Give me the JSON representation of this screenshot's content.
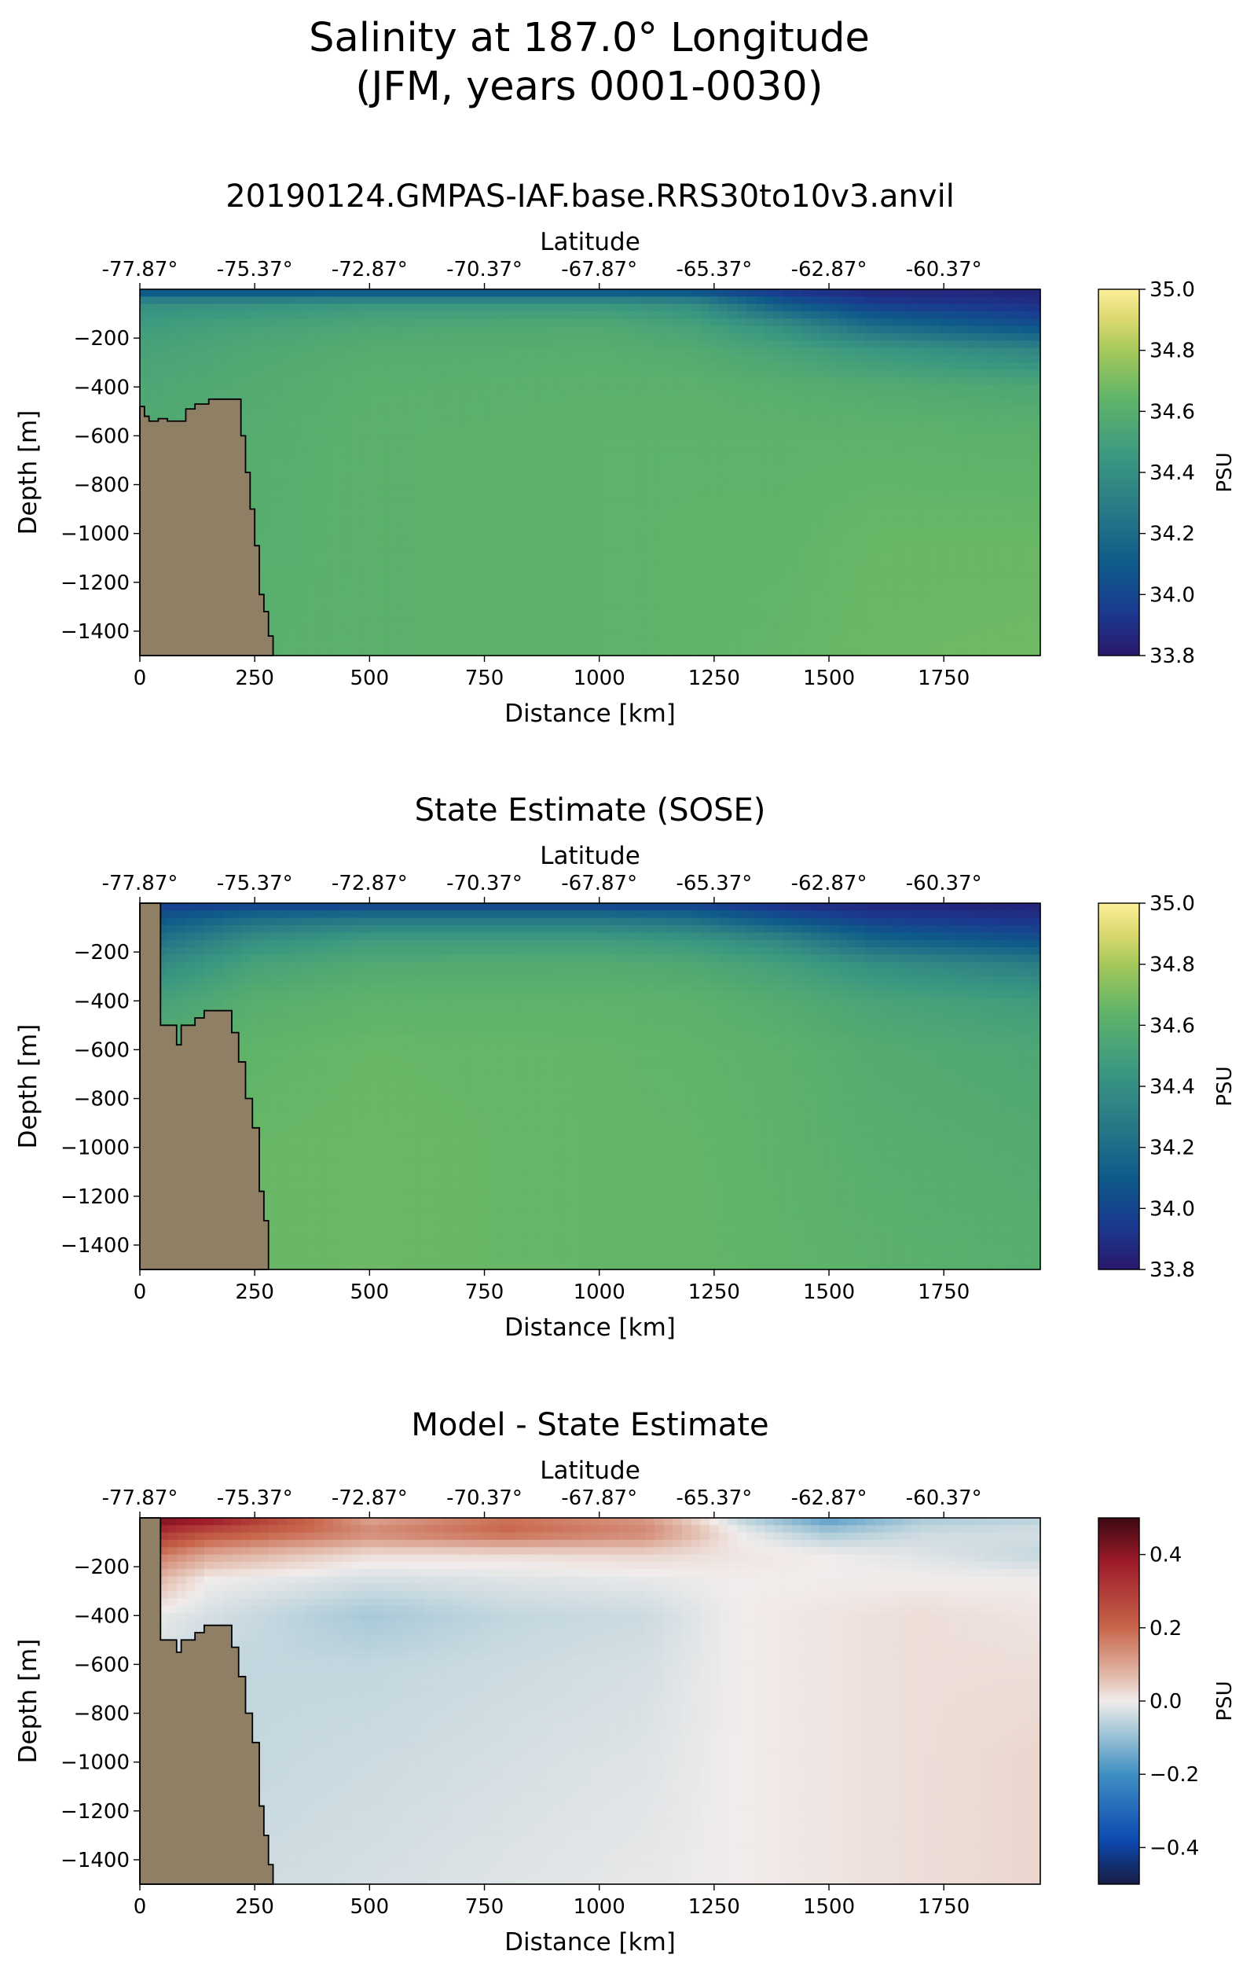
{
  "suptitle": {
    "line1": "Salinity at 187.0° Longitude",
    "line2": "(JFM, years 0001-0030)"
  },
  "chart_data": [
    {
      "type": "heatmap",
      "title": "20190124.GMPAS-IAF.base.RRS30to10v3.anvil",
      "xlabel": "Distance [km]",
      "ylabel": "Depth [m]",
      "top_xlabel": "Latitude",
      "xlim": [
        0,
        1960
      ],
      "ylim": [
        -1500,
        0
      ],
      "x_ticks": [
        "0",
        "250",
        "500",
        "750",
        "1000",
        "1250",
        "1500",
        "1750"
      ],
      "y_ticks": [
        "−200",
        "−400",
        "−600",
        "−800",
        "−1000",
        "−1200",
        "−1400"
      ],
      "top_x_ticks": [
        "-77.87°",
        "-75.37°",
        "-72.87°",
        "-70.37°",
        "-67.87°",
        "-65.37°",
        "-62.87°",
        "-60.37°"
      ],
      "colorbar": {
        "label": "PSU",
        "range": [
          33.8,
          35.0
        ],
        "ticks": [
          "33.8",
          "34.0",
          "34.2",
          "34.4",
          "34.6",
          "34.8",
          "35.0"
        ],
        "colormap": "haline"
      },
      "land_color": "#8f7f65",
      "land_depth_profile": {
        "distance_km": [
          0,
          10,
          20,
          40,
          60,
          80,
          100,
          120,
          150,
          180,
          205,
          220,
          230,
          240,
          250,
          260,
          270,
          280,
          290
        ],
        "depth_m": [
          -480,
          -520,
          -540,
          -530,
          -540,
          -540,
          -490,
          -470,
          -450,
          -450,
          -450,
          -600,
          -750,
          -900,
          -1050,
          -1250,
          -1320,
          -1420,
          -1500
        ]
      },
      "salinity_field": {
        "depth_m": [
          0,
          -60,
          -150,
          -250,
          -400,
          -600,
          -1000,
          -1500
        ],
        "distance_km": [
          0,
          250,
          500,
          1000,
          1200,
          1400,
          1600,
          1960
        ],
        "values": [
          [
            34.0,
            34.0,
            34.0,
            34.0,
            34.0,
            33.9,
            33.85,
            33.85
          ],
          [
            34.4,
            34.42,
            34.45,
            34.45,
            34.4,
            34.1,
            33.95,
            33.9
          ],
          [
            34.48,
            34.52,
            34.55,
            34.57,
            34.52,
            34.4,
            34.2,
            34.05
          ],
          [
            34.52,
            34.56,
            34.59,
            34.6,
            34.58,
            34.52,
            34.45,
            34.35
          ],
          [
            34.55,
            34.58,
            34.61,
            34.62,
            34.62,
            34.6,
            34.58,
            34.55
          ],
          [
            34.57,
            34.59,
            34.62,
            34.63,
            34.63,
            34.63,
            34.63,
            34.62
          ],
          [
            34.59,
            34.6,
            34.62,
            34.63,
            34.64,
            34.64,
            34.66,
            34.66
          ],
          [
            34.6,
            34.61,
            34.62,
            34.63,
            34.64,
            34.65,
            34.67,
            34.68
          ]
        ]
      }
    },
    {
      "type": "heatmap",
      "title": "State Estimate (SOSE)",
      "xlabel": "Distance [km]",
      "ylabel": "Depth [m]",
      "top_xlabel": "Latitude",
      "xlim": [
        0,
        1960
      ],
      "ylim": [
        -1500,
        0
      ],
      "x_ticks": [
        "0",
        "250",
        "500",
        "750",
        "1000",
        "1250",
        "1500",
        "1750"
      ],
      "y_ticks": [
        "−200",
        "−400",
        "−600",
        "−800",
        "−1000",
        "−1200",
        "−1400"
      ],
      "top_x_ticks": [
        "-77.87°",
        "-75.37°",
        "-72.87°",
        "-70.37°",
        "-67.87°",
        "-65.37°",
        "-62.87°",
        "-60.37°"
      ],
      "colorbar": {
        "label": "PSU",
        "range": [
          33.8,
          35.0
        ],
        "ticks": [
          "33.8",
          "34.0",
          "34.2",
          "34.4",
          "34.6",
          "34.8",
          "35.0"
        ],
        "colormap": "haline"
      },
      "land_color": "#8f7f65",
      "land_depth_profile": {
        "distance_km": [
          0,
          35,
          45,
          70,
          80,
          90,
          100,
          120,
          140,
          160,
          180,
          200,
          215,
          230,
          245,
          260,
          270,
          280
        ],
        "depth_m": [
          0,
          0,
          -500,
          -500,
          -580,
          -500,
          -500,
          -470,
          -440,
          -440,
          -440,
          -530,
          -650,
          -800,
          -920,
          -1180,
          -1300,
          -1500
        ]
      },
      "salinity_field": {
        "depth_m": [
          0,
          -60,
          -150,
          -250,
          -400,
          -600,
          -1000,
          -1500
        ],
        "distance_km": [
          0,
          250,
          500,
          1000,
          1200,
          1400,
          1600,
          1960
        ],
        "values": [
          [
            33.95,
            33.95,
            33.95,
            33.95,
            33.95,
            33.88,
            33.85,
            33.85
          ],
          [
            34.05,
            34.2,
            34.25,
            34.25,
            34.2,
            34.05,
            33.95,
            33.9
          ],
          [
            34.2,
            34.4,
            34.48,
            34.48,
            34.45,
            34.35,
            34.15,
            34.05
          ],
          [
            34.35,
            34.52,
            34.57,
            34.58,
            34.56,
            34.5,
            34.4,
            34.3
          ],
          [
            34.5,
            34.6,
            34.63,
            34.63,
            34.62,
            34.58,
            34.53,
            34.48
          ],
          [
            34.58,
            34.64,
            34.66,
            34.65,
            34.64,
            34.62,
            34.58,
            34.55
          ],
          [
            34.62,
            34.66,
            34.67,
            34.65,
            34.65,
            34.63,
            34.6,
            34.58
          ],
          [
            34.63,
            34.66,
            34.67,
            34.65,
            34.65,
            34.64,
            34.62,
            34.6
          ]
        ]
      }
    },
    {
      "type": "heatmap",
      "title": "Model - State Estimate",
      "xlabel": "Distance [km]",
      "ylabel": "Depth [m]",
      "top_xlabel": "Latitude",
      "xlim": [
        0,
        1960
      ],
      "ylim": [
        -1500,
        0
      ],
      "x_ticks": [
        "0",
        "250",
        "500",
        "750",
        "1000",
        "1250",
        "1500",
        "1750"
      ],
      "y_ticks": [
        "−200",
        "−400",
        "−600",
        "−800",
        "−1000",
        "−1200",
        "−1400"
      ],
      "top_x_ticks": [
        "-77.87°",
        "-75.37°",
        "-72.87°",
        "-70.37°",
        "-67.87°",
        "-65.37°",
        "-62.87°",
        "-60.37°"
      ],
      "colorbar": {
        "label": "PSU",
        "range": [
          -0.5,
          0.5
        ],
        "ticks": [
          "−0.4",
          "−0.2",
          "0.0",
          "0.2",
          "0.4"
        ],
        "colormap": "balance"
      },
      "land_color": "#8f7f65",
      "land_depth_profile": {
        "distance_km": [
          0,
          35,
          45,
          70,
          80,
          90,
          100,
          120,
          140,
          160,
          180,
          200,
          215,
          230,
          245,
          260,
          270,
          280,
          290
        ],
        "depth_m": [
          0,
          0,
          -500,
          -500,
          -550,
          -500,
          -500,
          -470,
          -440,
          -440,
          -440,
          -530,
          -650,
          -800,
          -920,
          -1180,
          -1300,
          -1420,
          -1500
        ]
      },
      "difference_field": {
        "depth_m": [
          0,
          -60,
          -150,
          -250,
          -400,
          -600,
          -1000,
          -1500
        ],
        "distance_km": [
          0,
          150,
          500,
          800,
          1100,
          1300,
          1500,
          1700,
          1960
        ],
        "values": [
          [
            0.45,
            0.4,
            0.1,
            0.18,
            0.12,
            -0.05,
            -0.18,
            -0.08,
            -0.06
          ],
          [
            0.35,
            0.25,
            0.15,
            0.2,
            0.15,
            0.0,
            -0.08,
            -0.04,
            -0.03
          ],
          [
            0.2,
            0.1,
            0.02,
            0.02,
            0.03,
            0.01,
            0.0,
            -0.02,
            -0.05
          ],
          [
            0.1,
            0.0,
            -0.03,
            -0.02,
            -0.01,
            0.0,
            0.0,
            0.0,
            0.0
          ],
          [
            0.0,
            -0.03,
            -0.08,
            -0.05,
            -0.04,
            0.0,
            0.01,
            0.02,
            0.01
          ],
          [
            -0.03,
            -0.05,
            -0.05,
            -0.04,
            -0.03,
            0.0,
            0.01,
            0.02,
            0.02
          ],
          [
            -0.04,
            -0.05,
            -0.04,
            -0.03,
            -0.02,
            0.0,
            0.01,
            0.02,
            0.03
          ],
          [
            -0.03,
            -0.04,
            -0.03,
            -0.02,
            -0.01,
            0.0,
            0.01,
            0.02,
            0.03
          ]
        ]
      }
    }
  ]
}
